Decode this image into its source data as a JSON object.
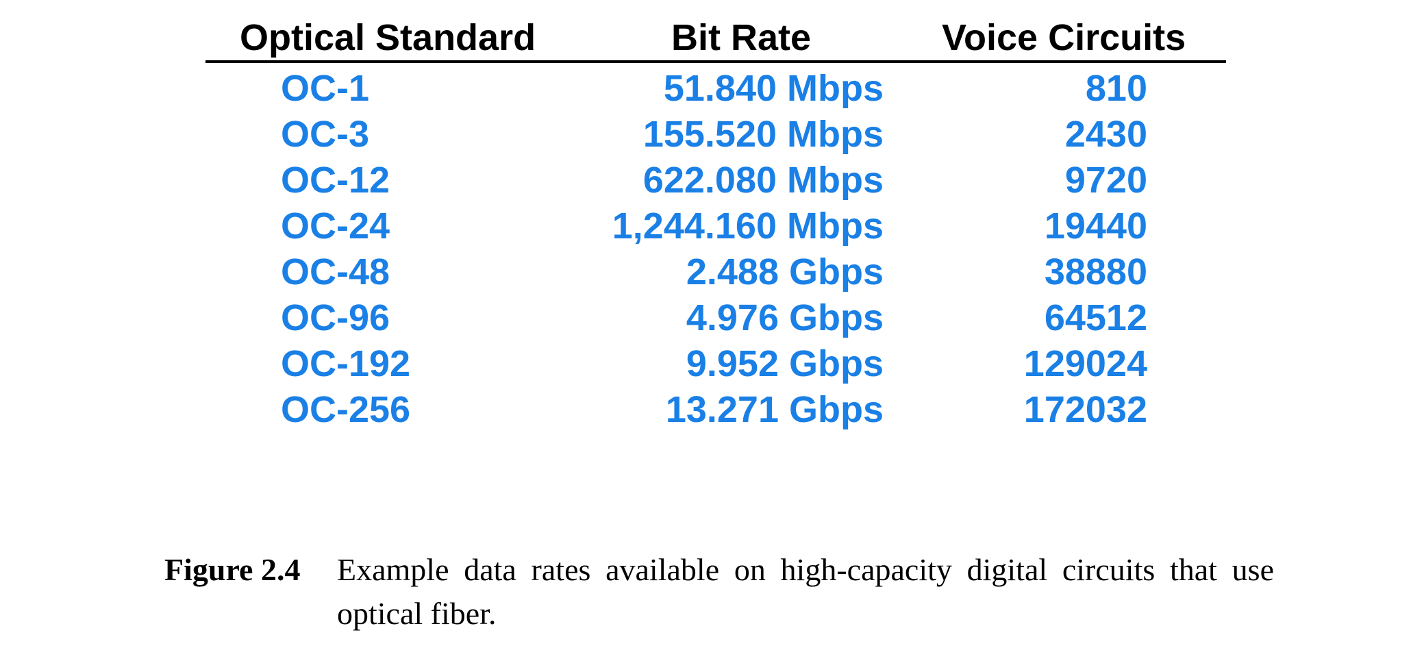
{
  "colors": {
    "header_text": "#000000",
    "row_text": "#1a80e6"
  },
  "table": {
    "headers": [
      "Optical Standard",
      "Bit Rate",
      "Voice Circuits"
    ],
    "rows": [
      [
        "OC-1",
        "51.840 Mbps",
        "810"
      ],
      [
        "OC-3",
        "155.520 Mbps",
        "2430"
      ],
      [
        "OC-12",
        "622.080 Mbps",
        "9720"
      ],
      [
        "OC-24",
        "1,244.160 Mbps",
        "19440"
      ],
      [
        "OC-48",
        "2.488 Gbps",
        "38880"
      ],
      [
        "OC-96",
        "4.976 Gbps",
        "64512"
      ],
      [
        "OC-192",
        "9.952 Gbps",
        "129024"
      ],
      [
        "OC-256",
        "13.271 Gbps",
        "172032"
      ]
    ]
  },
  "caption": {
    "label": "Figure 2.4",
    "text": "Example data rates available on high-capacity digital circuits that use optical fiber."
  }
}
